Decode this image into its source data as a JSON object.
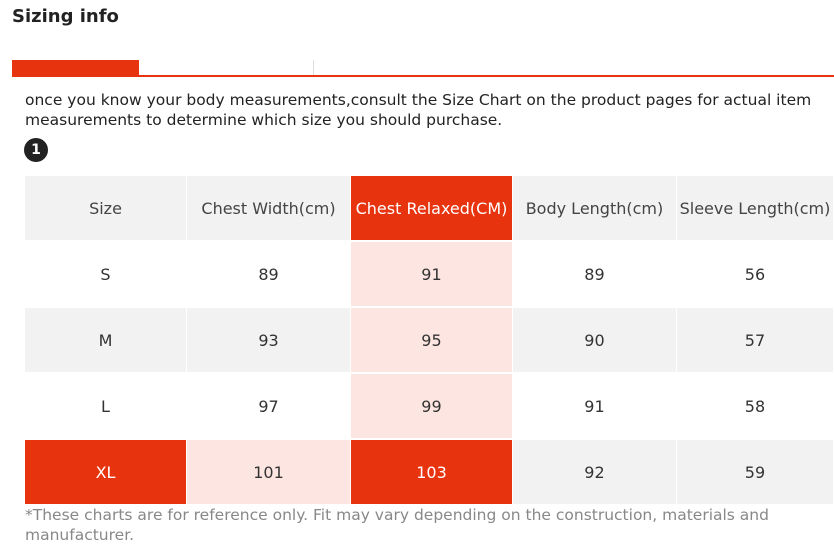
{
  "page": {
    "title": "Sizing info",
    "intro": "once you know your body measurements,consult the Size Chart on the product pages for actual item measurements to determine which size you should purchase.",
    "step_badge": "1",
    "footnote": "*These charts are for reference only. Fit may vary depending on the construction, materials and manufacturer."
  },
  "colors": {
    "accent": "#e8330f",
    "highlight": "#fde6e1",
    "row_alt": "#f2f2f2"
  },
  "table": {
    "headers": [
      "Size",
      "Chest Width(cm)",
      "Chest Relaxed(CM)",
      "Body Length(cm)",
      "Sleeve Length(cm)"
    ],
    "rows": [
      [
        "S",
        "89",
        "91",
        "89",
        "56"
      ],
      [
        "M",
        "93",
        "95",
        "90",
        "57"
      ],
      [
        "L",
        "97",
        "99",
        "91",
        "58"
      ],
      [
        "XL",
        "101",
        "103",
        "92",
        "59"
      ]
    ],
    "highlighted_column": "Chest Relaxed(CM)",
    "highlighted_row": "XL"
  }
}
